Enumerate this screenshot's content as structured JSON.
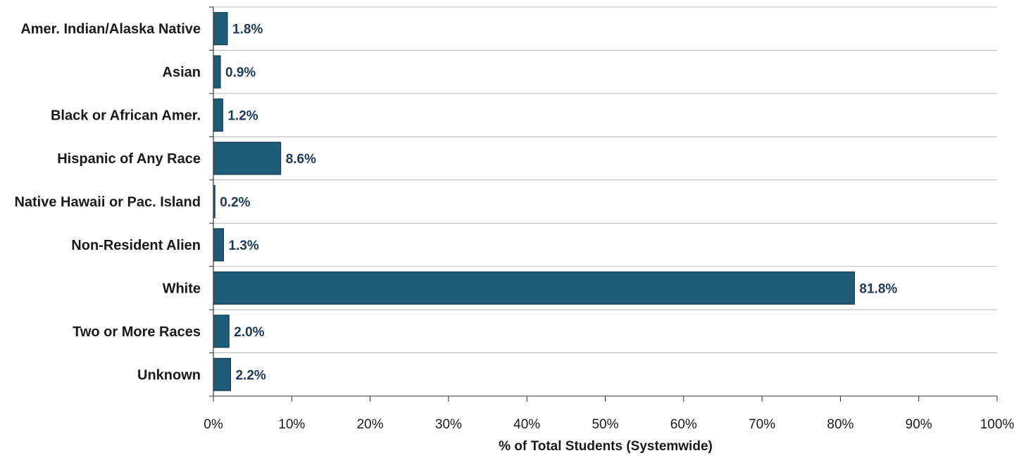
{
  "chart_data": {
    "type": "bar",
    "orientation": "horizontal",
    "categories": [
      "Amer. Indian/Alaska Native",
      "Asian",
      "Black or African Amer.",
      "Hispanic of Any Race",
      "Native Hawaii or Pac. Island",
      "Non-Resident Alien",
      "White",
      "Two or More Races",
      "Unknown"
    ],
    "values": [
      1.8,
      0.9,
      1.2,
      8.6,
      0.2,
      1.3,
      81.8,
      2.0,
      2.2
    ],
    "data_labels": [
      "1.8%",
      "0.9%",
      "1.2%",
      "8.6%",
      "0.2%",
      "1.3%",
      "81.8%",
      "2.0%",
      "2.2%"
    ],
    "xlabel": "% of Total Students (Systemwide)",
    "ylabel": "",
    "xlim": [
      0,
      100
    ],
    "x_ticks": [
      "0%",
      "10%",
      "20%",
      "30%",
      "40%",
      "50%",
      "60%",
      "70%",
      "80%",
      "90%",
      "100%"
    ],
    "grid": true,
    "colors": {
      "bar_fill": "#1f5c78",
      "bar_stroke": "#0e2f40",
      "data_label": "#1b3a5a",
      "grid": "#b8b8b8",
      "axis": "#333333"
    }
  }
}
